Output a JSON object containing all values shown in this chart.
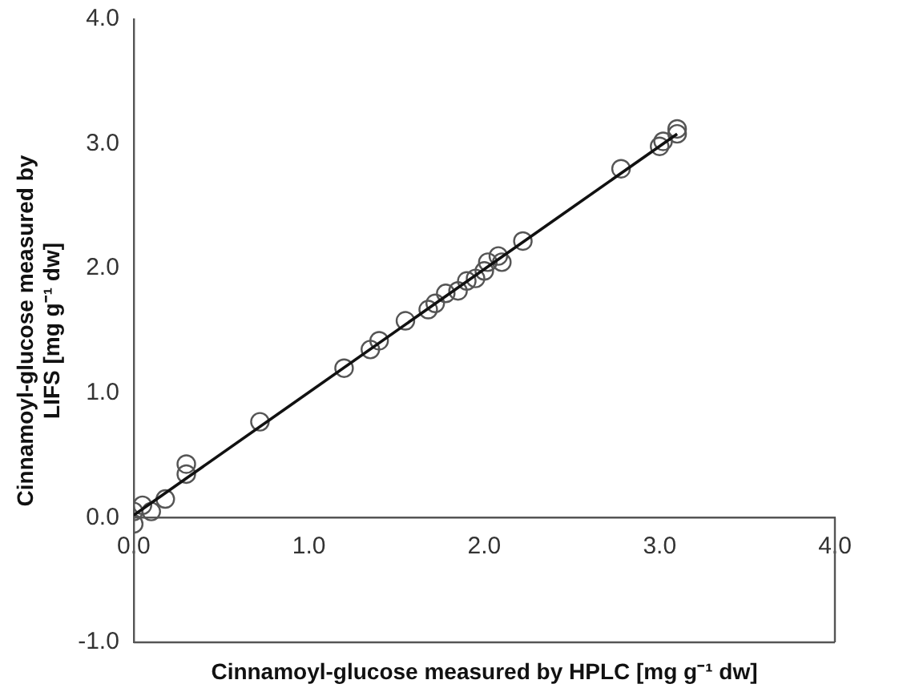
{
  "chart_data": {
    "type": "scatter",
    "xlabel": "Cinnamoyl-glucose measured by HPLC [mg g⁻¹ dw]",
    "ylabel": "Cinnamoyl-glucose measured by LIFS [mg g⁻¹ dw]",
    "xlim": [
      0,
      4
    ],
    "ylim": [
      -1,
      4
    ],
    "xticks": [
      {
        "value": 0,
        "label": "0.0"
      },
      {
        "value": 1,
        "label": "1.0"
      },
      {
        "value": 2,
        "label": "2.0"
      },
      {
        "value": 3,
        "label": "3.0"
      },
      {
        "value": 4,
        "label": "4.0"
      }
    ],
    "yticks": [
      {
        "value": -1,
        "label": "-1.0"
      },
      {
        "value": 0,
        "label": "0.0"
      },
      {
        "value": 1,
        "label": "1.0"
      },
      {
        "value": 2,
        "label": "2.0"
      },
      {
        "value": 3,
        "label": "3.0"
      },
      {
        "value": 4,
        "label": "4.0"
      }
    ],
    "grid": false,
    "legend": false,
    "marker": "circle",
    "series": [
      {
        "type": "scatter",
        "color": "#555555",
        "x": [
          0.0,
          0.0,
          0.05,
          0.1,
          0.18,
          0.3,
          0.3,
          0.72,
          1.2,
          1.35,
          1.4,
          1.55,
          1.68,
          1.72,
          1.78,
          1.85,
          1.9,
          1.95,
          2.0,
          2.02,
          2.08,
          2.1,
          2.22,
          2.78,
          3.0,
          3.02,
          3.1,
          3.1
        ],
        "values": [
          0.05,
          -0.05,
          0.1,
          0.05,
          0.15,
          0.43,
          0.35,
          0.77,
          1.2,
          1.35,
          1.42,
          1.58,
          1.67,
          1.72,
          1.8,
          1.82,
          1.9,
          1.92,
          1.98,
          2.05,
          2.1,
          2.05,
          2.22,
          2.8,
          2.98,
          3.02,
          3.12,
          3.08
        ]
      },
      {
        "type": "line",
        "color": "#111111",
        "marker": "none",
        "line_style": "solid",
        "x": [
          0,
          3.1
        ],
        "values": [
          0.02,
          3.08
        ]
      }
    ]
  }
}
